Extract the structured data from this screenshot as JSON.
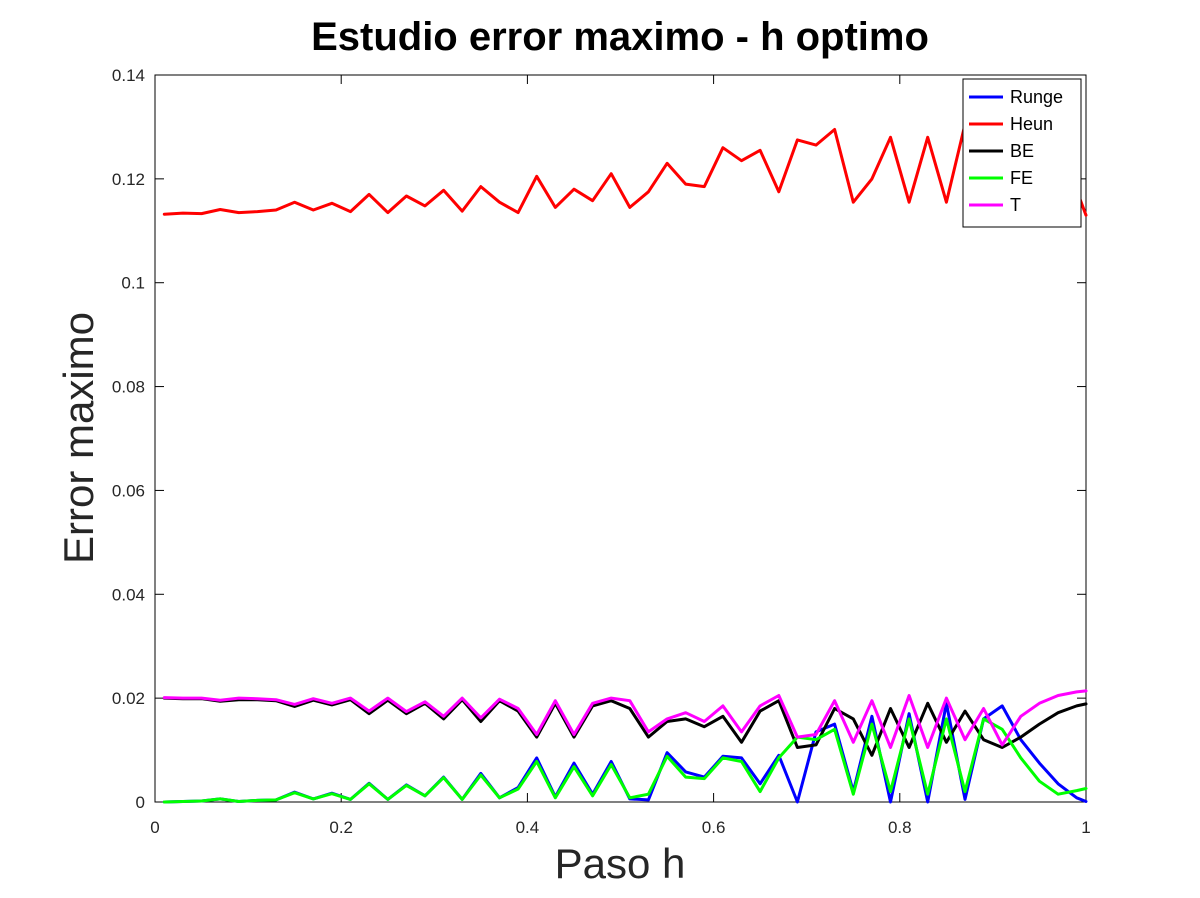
{
  "chart_data": {
    "type": "line",
    "title": "Estudio error maximo - h optimo",
    "xlabel": "Paso h",
    "ylabel": "Error maximo",
    "xlim": [
      0,
      1
    ],
    "ylim": [
      0,
      0.14
    ],
    "xticks": [
      0,
      0.2,
      0.4,
      0.6,
      0.8,
      1
    ],
    "xtick_labels": [
      "0",
      "0.2",
      "0.4",
      "0.6",
      "0.8",
      "1"
    ],
    "yticks": [
      0,
      0.02,
      0.04,
      0.06,
      0.08,
      0.1,
      0.12,
      0.14
    ],
    "ytick_labels": [
      "0",
      "0.02",
      "0.04",
      "0.06",
      "0.08",
      "0.1",
      "0.12",
      "0.14"
    ],
    "grid": false,
    "legend_position": "top-right",
    "series": [
      {
        "name": "Runge",
        "color": "#0000ff",
        "x": [
          0.01,
          0.03,
          0.05,
          0.07,
          0.09,
          0.11,
          0.13,
          0.15,
          0.17,
          0.19,
          0.21,
          0.23,
          0.25,
          0.27,
          0.29,
          0.31,
          0.33,
          0.35,
          0.37,
          0.39,
          0.41,
          0.43,
          0.45,
          0.47,
          0.49,
          0.51,
          0.53,
          0.55,
          0.57,
          0.59,
          0.61,
          0.63,
          0.65,
          0.67,
          0.69,
          0.71,
          0.73,
          0.75,
          0.77,
          0.79,
          0.81,
          0.83,
          0.85,
          0.87,
          0.89,
          0.91,
          0.93,
          0.95,
          0.97,
          0.99,
          1.0
        ],
        "y": [
          0.0,
          0.0001,
          0.0002,
          0.0006,
          0.0001,
          0.0003,
          0.0004,
          0.0019,
          0.0006,
          0.0017,
          0.0005,
          0.0036,
          0.0005,
          0.0033,
          0.0012,
          0.0048,
          0.0005,
          0.0055,
          0.0008,
          0.0028,
          0.0085,
          0.001,
          0.0075,
          0.0015,
          0.0078,
          0.0006,
          0.0004,
          0.0095,
          0.0058,
          0.0048,
          0.0088,
          0.0085,
          0.0035,
          0.009,
          0.0,
          0.0135,
          0.015,
          0.002,
          0.0165,
          0.0,
          0.017,
          0.0,
          0.019,
          0.0005,
          0.016,
          0.0185,
          0.012,
          0.0075,
          0.0035,
          0.0008,
          0.0001
        ]
      },
      {
        "name": "Heun",
        "color": "#ff0000",
        "x": [
          0.01,
          0.03,
          0.05,
          0.07,
          0.09,
          0.11,
          0.13,
          0.15,
          0.17,
          0.19,
          0.21,
          0.23,
          0.25,
          0.27,
          0.29,
          0.31,
          0.33,
          0.35,
          0.37,
          0.39,
          0.41,
          0.43,
          0.45,
          0.47,
          0.49,
          0.51,
          0.53,
          0.55,
          0.57,
          0.59,
          0.61,
          0.63,
          0.65,
          0.67,
          0.69,
          0.71,
          0.73,
          0.75,
          0.77,
          0.79,
          0.81,
          0.83,
          0.85,
          0.87,
          0.89,
          0.91,
          0.93,
          0.95,
          0.97,
          0.99,
          1.0
        ],
        "y": [
          0.1132,
          0.1134,
          0.1133,
          0.1141,
          0.1135,
          0.1137,
          0.114,
          0.1155,
          0.114,
          0.1153,
          0.1137,
          0.117,
          0.1135,
          0.1167,
          0.1148,
          0.1178,
          0.1138,
          0.1185,
          0.1155,
          0.1135,
          0.1205,
          0.1145,
          0.118,
          0.1158,
          0.121,
          0.1145,
          0.1175,
          0.123,
          0.119,
          0.1185,
          0.126,
          0.1235,
          0.1255,
          0.1175,
          0.1275,
          0.1265,
          0.1295,
          0.1155,
          0.12,
          0.128,
          0.1155,
          0.128,
          0.1155,
          0.1305,
          0.1135,
          0.125,
          0.1165,
          0.1295,
          0.1215,
          0.1178,
          0.113
        ]
      },
      {
        "name": "BE",
        "color": "#000000",
        "x": [
          0.01,
          0.03,
          0.05,
          0.07,
          0.09,
          0.11,
          0.13,
          0.15,
          0.17,
          0.19,
          0.21,
          0.23,
          0.25,
          0.27,
          0.29,
          0.31,
          0.33,
          0.35,
          0.37,
          0.39,
          0.41,
          0.43,
          0.45,
          0.47,
          0.49,
          0.51,
          0.53,
          0.55,
          0.57,
          0.59,
          0.61,
          0.63,
          0.65,
          0.67,
          0.69,
          0.71,
          0.73,
          0.75,
          0.77,
          0.79,
          0.81,
          0.83,
          0.85,
          0.87,
          0.89,
          0.91,
          0.93,
          0.95,
          0.97,
          0.99,
          1.0
        ],
        "y": [
          0.02,
          0.0199,
          0.0199,
          0.0194,
          0.0197,
          0.0197,
          0.0195,
          0.0184,
          0.0196,
          0.0187,
          0.0197,
          0.017,
          0.0196,
          0.017,
          0.019,
          0.016,
          0.0197,
          0.0155,
          0.0195,
          0.0175,
          0.0125,
          0.019,
          0.0125,
          0.0185,
          0.0195,
          0.018,
          0.0125,
          0.0155,
          0.016,
          0.0145,
          0.0165,
          0.0115,
          0.0175,
          0.0195,
          0.0105,
          0.011,
          0.018,
          0.016,
          0.009,
          0.018,
          0.0105,
          0.019,
          0.0115,
          0.0175,
          0.012,
          0.0105,
          0.0125,
          0.015,
          0.0172,
          0.0185,
          0.0189
        ]
      },
      {
        "name": "FE",
        "color": "#00ff00",
        "x": [
          0.01,
          0.03,
          0.05,
          0.07,
          0.09,
          0.11,
          0.13,
          0.15,
          0.17,
          0.19,
          0.21,
          0.23,
          0.25,
          0.27,
          0.29,
          0.31,
          0.33,
          0.35,
          0.37,
          0.39,
          0.41,
          0.43,
          0.45,
          0.47,
          0.49,
          0.51,
          0.53,
          0.55,
          0.57,
          0.59,
          0.61,
          0.63,
          0.65,
          0.67,
          0.69,
          0.71,
          0.73,
          0.75,
          0.77,
          0.79,
          0.81,
          0.83,
          0.85,
          0.87,
          0.89,
          0.91,
          0.93,
          0.95,
          0.97,
          0.99,
          1.0
        ],
        "y": [
          0.0,
          0.0001,
          0.0002,
          0.0006,
          0.0001,
          0.0003,
          0.0004,
          0.0018,
          0.0006,
          0.0016,
          0.0005,
          0.0035,
          0.0005,
          0.0032,
          0.0012,
          0.0047,
          0.0005,
          0.0052,
          0.0008,
          0.0025,
          0.0078,
          0.0008,
          0.0068,
          0.0012,
          0.0072,
          0.0008,
          0.0015,
          0.0088,
          0.0048,
          0.0045,
          0.0085,
          0.0078,
          0.002,
          0.0085,
          0.0125,
          0.012,
          0.014,
          0.0015,
          0.015,
          0.002,
          0.016,
          0.0015,
          0.016,
          0.002,
          0.016,
          0.014,
          0.0085,
          0.004,
          0.0015,
          0.0022,
          0.0026
        ]
      },
      {
        "name": "T",
        "color": "#ff00ff",
        "x": [
          0.01,
          0.03,
          0.05,
          0.07,
          0.09,
          0.11,
          0.13,
          0.15,
          0.17,
          0.19,
          0.21,
          0.23,
          0.25,
          0.27,
          0.29,
          0.31,
          0.33,
          0.35,
          0.37,
          0.39,
          0.41,
          0.43,
          0.45,
          0.47,
          0.49,
          0.51,
          0.53,
          0.55,
          0.57,
          0.59,
          0.61,
          0.63,
          0.65,
          0.67,
          0.69,
          0.71,
          0.73,
          0.75,
          0.77,
          0.79,
          0.81,
          0.83,
          0.85,
          0.87,
          0.89,
          0.91,
          0.93,
          0.95,
          0.97,
          0.99,
          1.0
        ],
        "y": [
          0.0201,
          0.02,
          0.02,
          0.0196,
          0.02,
          0.0199,
          0.0197,
          0.0188,
          0.0199,
          0.019,
          0.02,
          0.0175,
          0.02,
          0.0174,
          0.0193,
          0.0165,
          0.02,
          0.0162,
          0.0198,
          0.018,
          0.013,
          0.0195,
          0.013,
          0.019,
          0.02,
          0.0195,
          0.0135,
          0.016,
          0.0172,
          0.0155,
          0.0185,
          0.0135,
          0.0185,
          0.0205,
          0.0125,
          0.013,
          0.0195,
          0.0115,
          0.0195,
          0.0105,
          0.0205,
          0.0105,
          0.02,
          0.012,
          0.018,
          0.011,
          0.0165,
          0.019,
          0.0205,
          0.0212,
          0.0214
        ]
      }
    ]
  }
}
